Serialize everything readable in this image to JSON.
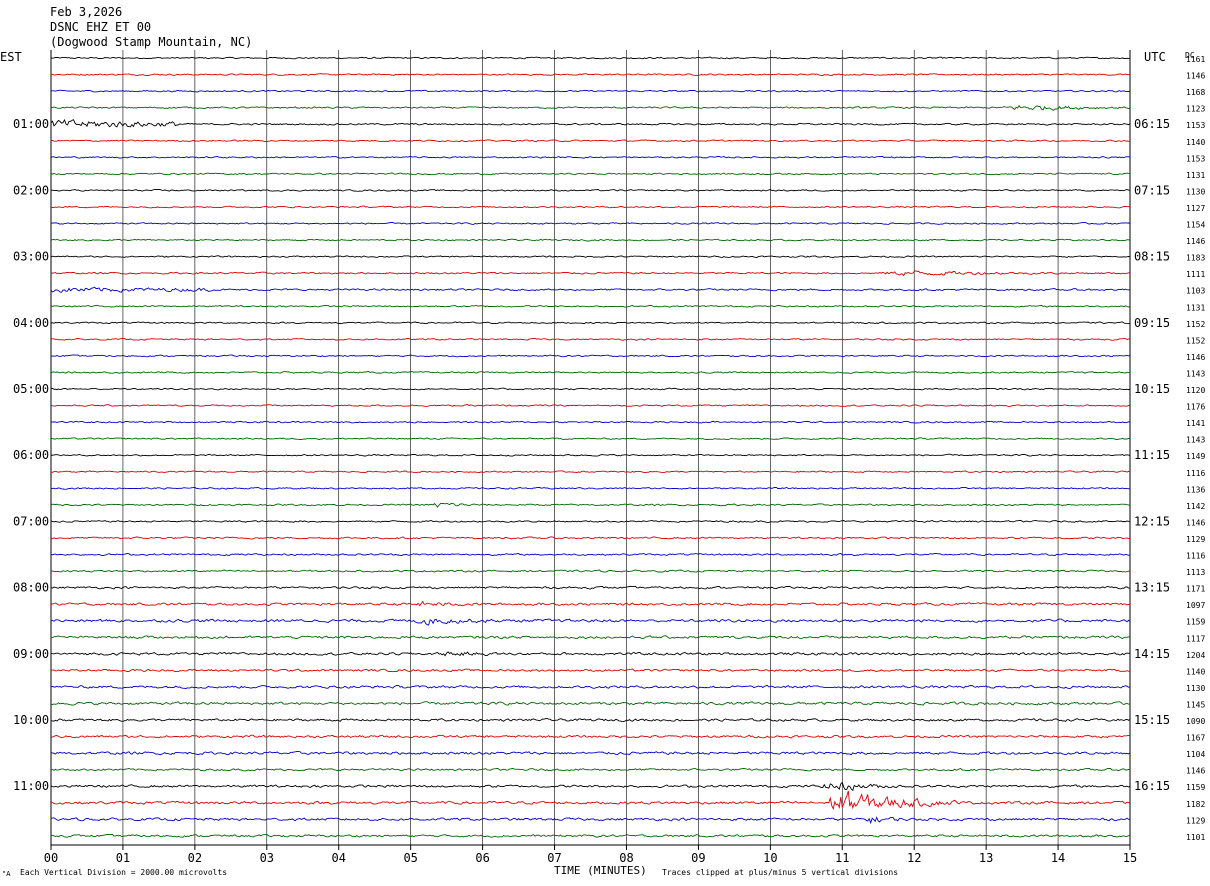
{
  "header": {
    "date": "Feb 3,2026",
    "station": "DSNC EHZ ET 00",
    "location": "(Dogwood Stamp Mountain, NC)"
  },
  "left_axis_label": "EST",
  "right_axis_label": "UTC",
  "dc_label": "DC",
  "footer": {
    "left_mark": "\"A",
    "scale_note": "Each Vertical Division = 2000.00 microvolts",
    "clip_note": "Traces clipped at plus/minus 5 vertical divisions"
  },
  "colors": {
    "trace_cycle": [
      "#000000",
      "#dd0000",
      "#0000cc",
      "#006600"
    ],
    "grid": "#000000"
  },
  "chart_data": {
    "type": "line",
    "title": "Feb 3,2026",
    "xlabel": "TIME (MINUTES)",
    "ylabel": "",
    "xlim": [
      0,
      15
    ],
    "x_ticks": [
      "00",
      "01",
      "02",
      "03",
      "04",
      "05",
      "06",
      "07",
      "08",
      "09",
      "10",
      "11",
      "12",
      "13",
      "14",
      "15"
    ],
    "est_labels": [
      "01:00",
      "02:00",
      "03:00",
      "04:00",
      "05:00",
      "06:00",
      "07:00",
      "08:00",
      "09:00",
      "10:00",
      "11:00"
    ],
    "utc_labels": [
      "06:15",
      "07:15",
      "08:15",
      "09:15",
      "10:15",
      "11:15",
      "12:15",
      "13:15",
      "14:15",
      "15:15",
      "16:15"
    ],
    "hour_label_start_trace": 4,
    "traces_per_hour": 4,
    "trace_count": 48,
    "dc_offsets": [
      1161,
      1146,
      1168,
      1123,
      1153,
      1140,
      1153,
      1131,
      1130,
      1127,
      1154,
      1146,
      1183,
      1111,
      1103,
      1131,
      1152,
      1152,
      1146,
      1143,
      1120,
      1176,
      1141,
      1143,
      1149,
      1116,
      1136,
      1142,
      1146,
      1129,
      1116,
      1113,
      1171,
      1097,
      1159,
      1117,
      1204,
      1140,
      1130,
      1145,
      1090,
      1167,
      1104,
      1146,
      1159,
      1182,
      1129,
      1101
    ],
    "noise_level": [
      1,
      1,
      1,
      1.1,
      1.1,
      1,
      1,
      1,
      1,
      1,
      1,
      1,
      1,
      1.1,
      1.2,
      1,
      1,
      1,
      1,
      1,
      1,
      1,
      1,
      1,
      1,
      1,
      1,
      1.1,
      1.1,
      1.2,
      1.2,
      1.2,
      1.4,
      1.6,
      1.9,
      1.7,
      1.7,
      1.5,
      1.7,
      1.8,
      1.6,
      1.6,
      1.8,
      1.4,
      1.6,
      1.8,
      1.7,
      1.5
    ],
    "events": [
      {
        "trace": 3,
        "start": 13.2,
        "end": 15.0,
        "amp": 2.2
      },
      {
        "trace": 4,
        "start": 0.0,
        "end": 1.8,
        "amp": 3.2
      },
      {
        "trace": 13,
        "start": 11.5,
        "end": 14.0,
        "amp": 1.8
      },
      {
        "trace": 14,
        "start": 0.0,
        "end": 2.2,
        "amp": 1.6
      },
      {
        "trace": 27,
        "start": 5.3,
        "end": 5.9,
        "amp": 2.6
      },
      {
        "trace": 33,
        "start": 5.0,
        "end": 6.0,
        "amp": 1.6
      },
      {
        "trace": 34,
        "start": 5.0,
        "end": 6.3,
        "amp": 2.4
      },
      {
        "trace": 36,
        "start": 5.4,
        "end": 6.2,
        "amp": 1.8
      },
      {
        "trace": 44,
        "start": 10.7,
        "end": 11.8,
        "amp": 4.0
      },
      {
        "trace": 45,
        "start": 10.7,
        "end": 12.6,
        "amp": 9.5
      },
      {
        "trace": 46,
        "start": 11.3,
        "end": 11.9,
        "amp": 3.0
      }
    ],
    "grid": true
  }
}
